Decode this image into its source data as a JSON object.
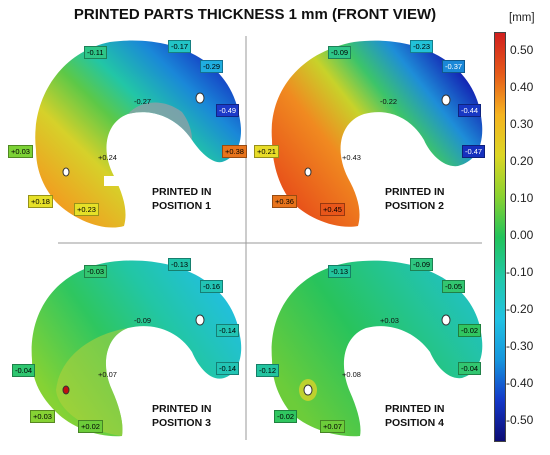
{
  "title": "PRINTED PARTS THICKNESS 1 mm (FRONT VIEW)",
  "colorbar": {
    "unit": "[mm]",
    "ticks": [
      "0.50",
      "0.40",
      "0.30",
      "0.20",
      "0.10",
      "0.00",
      "-0.10",
      "-0.20",
      "-0.30",
      "-0.40",
      "-0.50"
    ],
    "stops": [
      "#d11f1f",
      "#e55a1a",
      "#f5b320",
      "#dcd624",
      "#8ad230",
      "#22c35a",
      "#22c8a8",
      "#22c2e2",
      "#1696dd",
      "#1438c8",
      "#0c0c74"
    ]
  },
  "panels": [
    {
      "label_line1": "PRINTED IN",
      "label_line2": "POSITION 1",
      "tags": [
        "-0.11",
        "-0.17",
        "-0.29",
        "-0.49",
        "+0.38",
        "+0.03",
        "+0.18",
        "+0.23"
      ],
      "inline": [
        "-0.27",
        "+0.24"
      ]
    },
    {
      "label_line1": "PRINTED IN",
      "label_line2": "POSITION 2",
      "tags": [
        "-0.09",
        "-0.23",
        "-0.37",
        "-0.44",
        "-0.47",
        "+0.21",
        "+0.36",
        "+0.45"
      ],
      "inline": [
        "-0.22",
        "+0.43"
      ]
    },
    {
      "label_line1": "PRINTED IN",
      "label_line2": "POSITION 3",
      "tags": [
        "-0.03",
        "-0.13",
        "-0.16",
        "-0.14",
        "-0.14",
        "-0.04",
        "+0.03",
        "+0.02"
      ],
      "inline": [
        "-0.09",
        "+0.07"
      ]
    },
    {
      "label_line1": "PRINTED IN",
      "label_line2": "POSITION 4",
      "tags": [
        "-0.13",
        "-0.09",
        "-0.05",
        "-0.02",
        "-0.04",
        "-0.12",
        "-0.02",
        "+0.07"
      ],
      "inline": [
        "+0.03",
        "+0.08"
      ]
    }
  ]
}
